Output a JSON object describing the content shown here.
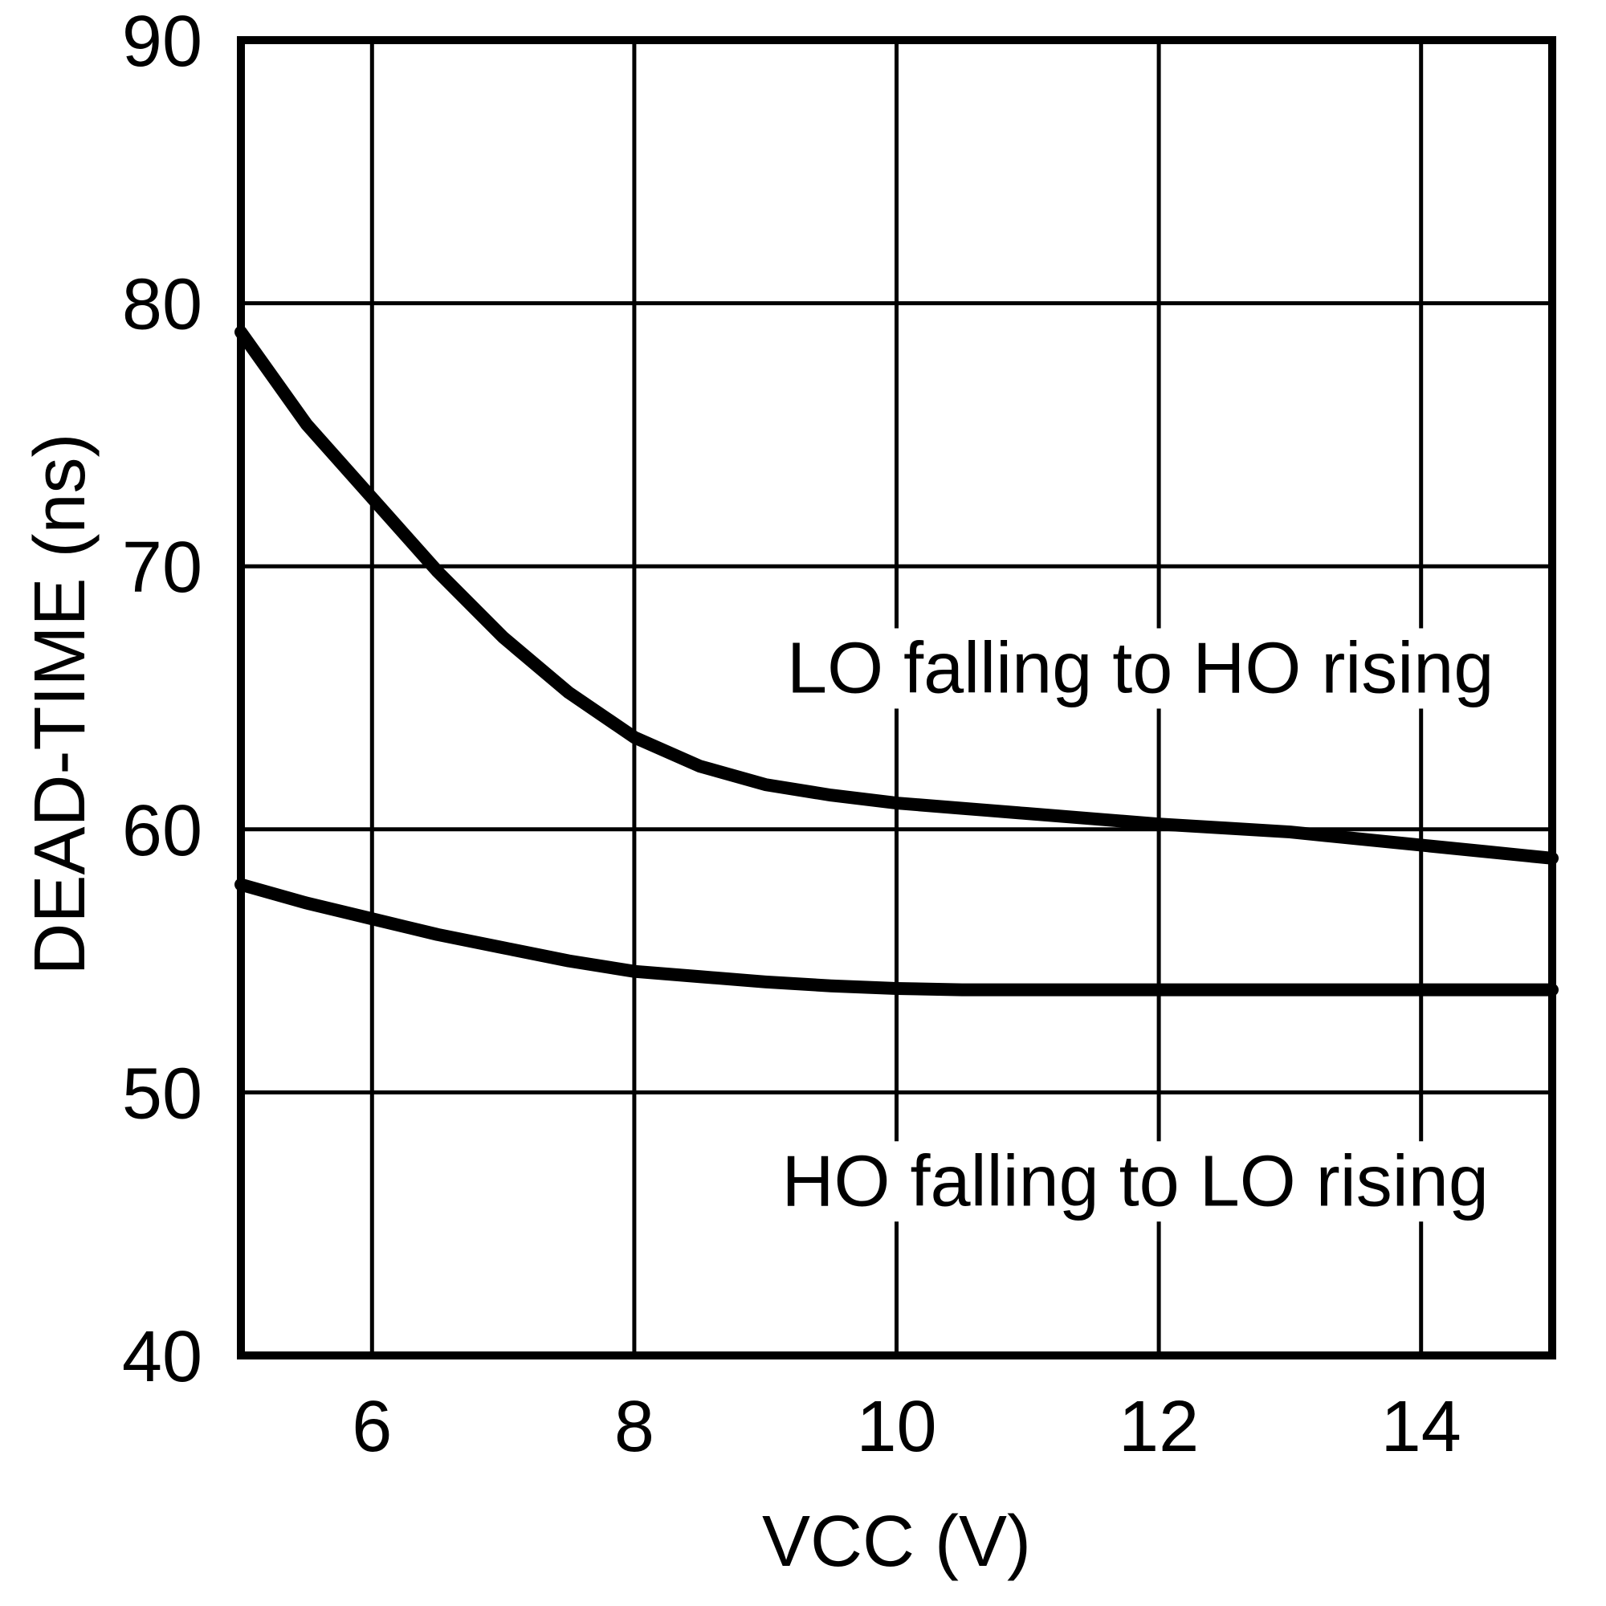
{
  "figure": {
    "background": "#ffffff",
    "foreground": "#000000"
  },
  "chart_data": {
    "type": "line",
    "title": "",
    "xlabel": "VCC (V)",
    "ylabel": "DEAD-TIME (ns)",
    "xlim": [
      5,
      15
    ],
    "ylim": [
      40,
      90
    ],
    "x_ticks": [
      6,
      8,
      10,
      12,
      14
    ],
    "y_ticks": [
      40,
      50,
      60,
      70,
      80,
      90
    ],
    "grid": true,
    "legend_position": "inline-annotations",
    "series": [
      {
        "name": "LO falling to HO rising",
        "x": [
          5.0,
          5.5,
          6.0,
          6.5,
          7.0,
          7.5,
          8.0,
          8.5,
          9.0,
          9.5,
          10.0,
          10.5,
          11.0,
          11.5,
          12.0,
          12.5,
          13.0,
          13.5,
          14.0,
          14.5,
          15.0
        ],
        "y": [
          78.9,
          75.4,
          72.6,
          69.8,
          67.3,
          65.2,
          63.5,
          62.4,
          61.7,
          61.3,
          61.0,
          60.8,
          60.6,
          60.4,
          60.2,
          60.05,
          59.9,
          59.65,
          59.4,
          59.15,
          58.9
        ],
        "annotation": {
          "label": "LO falling to HO rising",
          "vcc": 11.86,
          "ns_baseline": 65.2
        }
      },
      {
        "name": "HO falling to LO rising",
        "x": [
          5.0,
          5.5,
          6.0,
          6.5,
          7.0,
          7.5,
          8.0,
          8.5,
          9.0,
          9.5,
          10.0,
          10.5,
          11.0,
          11.5,
          12.0,
          12.5,
          13.0,
          13.5,
          14.0,
          14.5,
          15.0
        ],
        "y": [
          57.9,
          57.2,
          56.6,
          56.0,
          55.5,
          55.0,
          54.6,
          54.4,
          54.2,
          54.05,
          53.95,
          53.9,
          53.9,
          53.9,
          53.9,
          53.9,
          53.9,
          53.9,
          53.9,
          53.9,
          53.9
        ],
        "annotation": {
          "label": "HO falling to LO rising",
          "vcc": 11.82,
          "ns_baseline": 45.7
        }
      }
    ]
  }
}
